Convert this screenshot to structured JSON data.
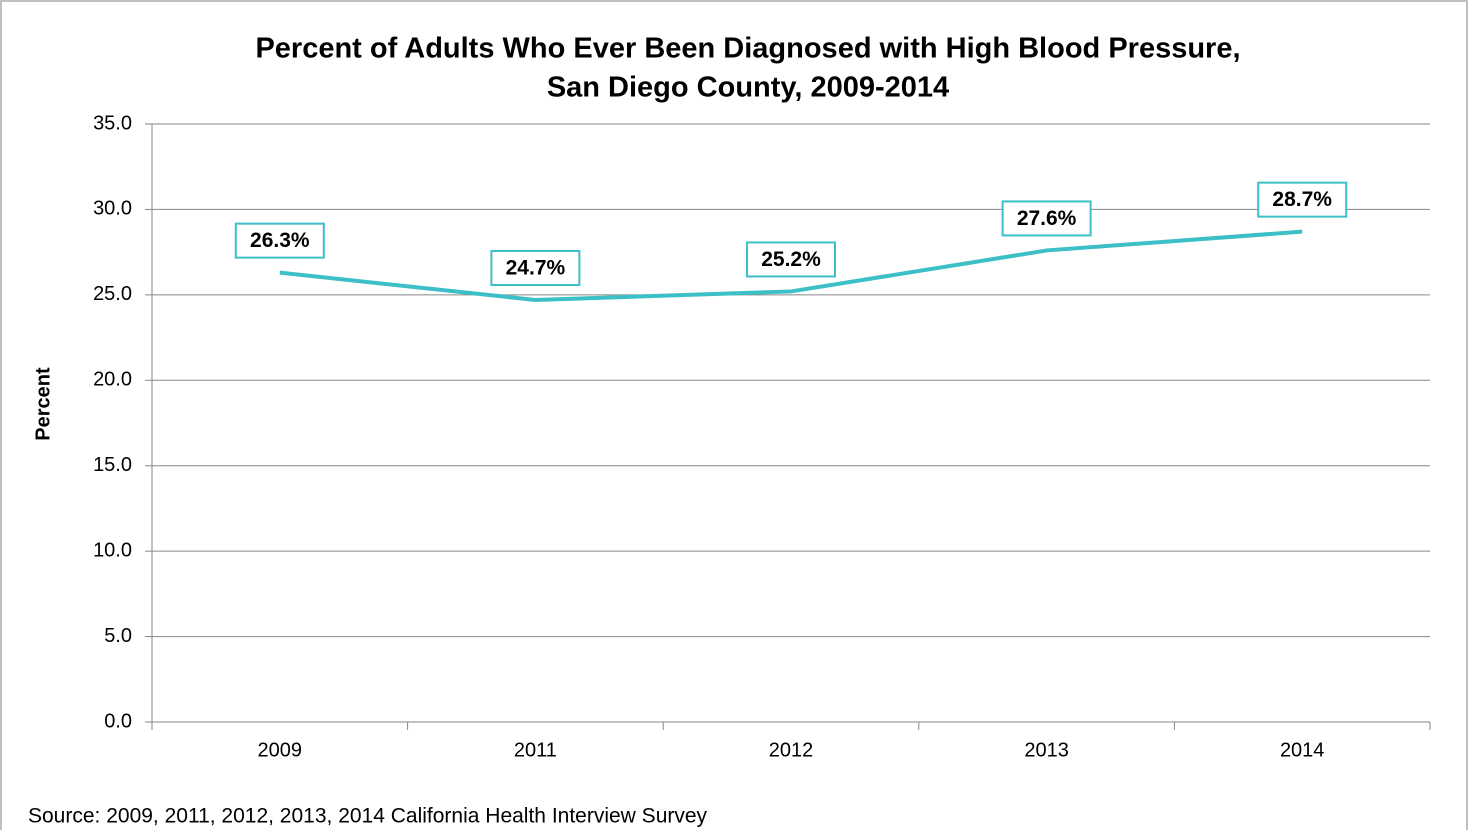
{
  "chart_data": {
    "type": "line",
    "title": [
      "Percent of Adults Who Ever Been Diagnosed with High Blood Pressure,",
      "San Diego County, 2009-2014"
    ],
    "y_label": "Percent",
    "source": "Source: 2009, 2011, 2012, 2013, 2014 California Health Interview Survey",
    "categories": [
      "2009",
      "2011",
      "2012",
      "2013",
      "2014"
    ],
    "series": [
      {
        "color": "#3cbfc6",
        "values": [
          26.3,
          24.7,
          25.2,
          27.6,
          28.7
        ],
        "value_labels": [
          "26.3%",
          "24.7%",
          "25.2%",
          "27.6%",
          "28.7%"
        ]
      }
    ],
    "ylim": [
      0,
      35
    ],
    "yticks": [
      {
        "value": 0,
        "label": "0.0"
      },
      {
        "value": 5,
        "label": "5.0"
      },
      {
        "value": 10,
        "label": "10.0"
      },
      {
        "value": 15,
        "label": "15.0"
      },
      {
        "value": 20,
        "label": "20.0"
      },
      {
        "value": 25,
        "label": "25.0"
      },
      {
        "value": 30,
        "label": "30.0"
      },
      {
        "value": 35,
        "label": "35.0"
      }
    ],
    "grid": true
  }
}
